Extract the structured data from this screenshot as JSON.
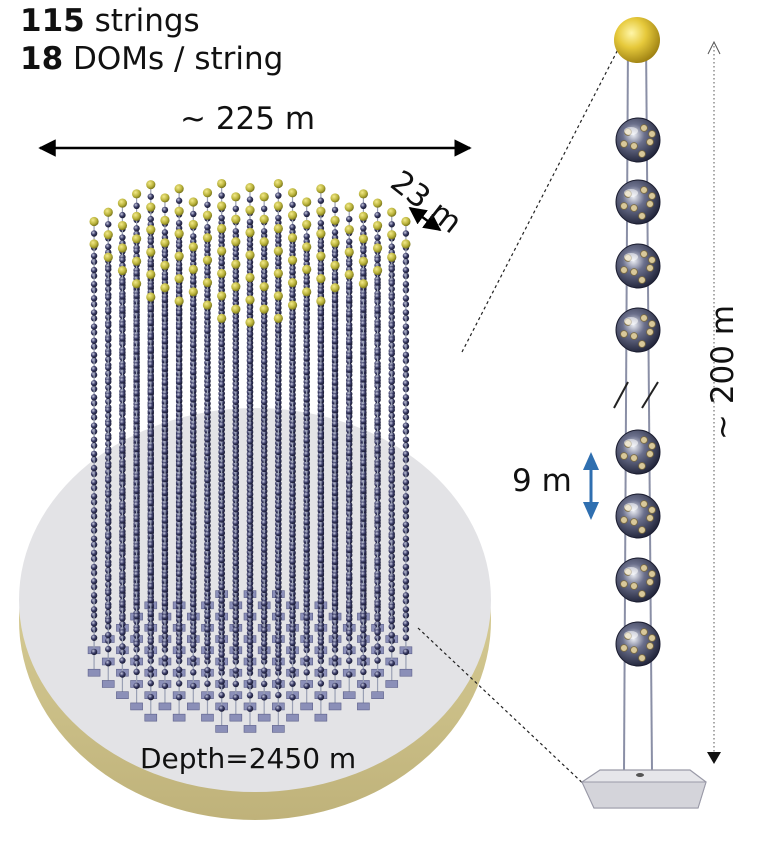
{
  "header": {
    "strings_count": "115",
    "strings_label": " strings",
    "doms_count": "18",
    "doms_label": " DOMs / string"
  },
  "dimensions": {
    "array_width": "~ 225 m",
    "string_spacing": "23 m",
    "dom_vertical_spacing": "9 m",
    "string_height": "~ 200 m",
    "depth": "Depth=2450 m"
  },
  "colors": {
    "top_sphere": "#e0c23a",
    "dom_dark": "#2e2f55",
    "string_line": "#9aa0b4",
    "disk_top": "#e3e3e6",
    "disk_side": "#d9cf9a",
    "arrow_blue": "#2f6fb0",
    "base_plate": "#e6e6ea"
  }
}
